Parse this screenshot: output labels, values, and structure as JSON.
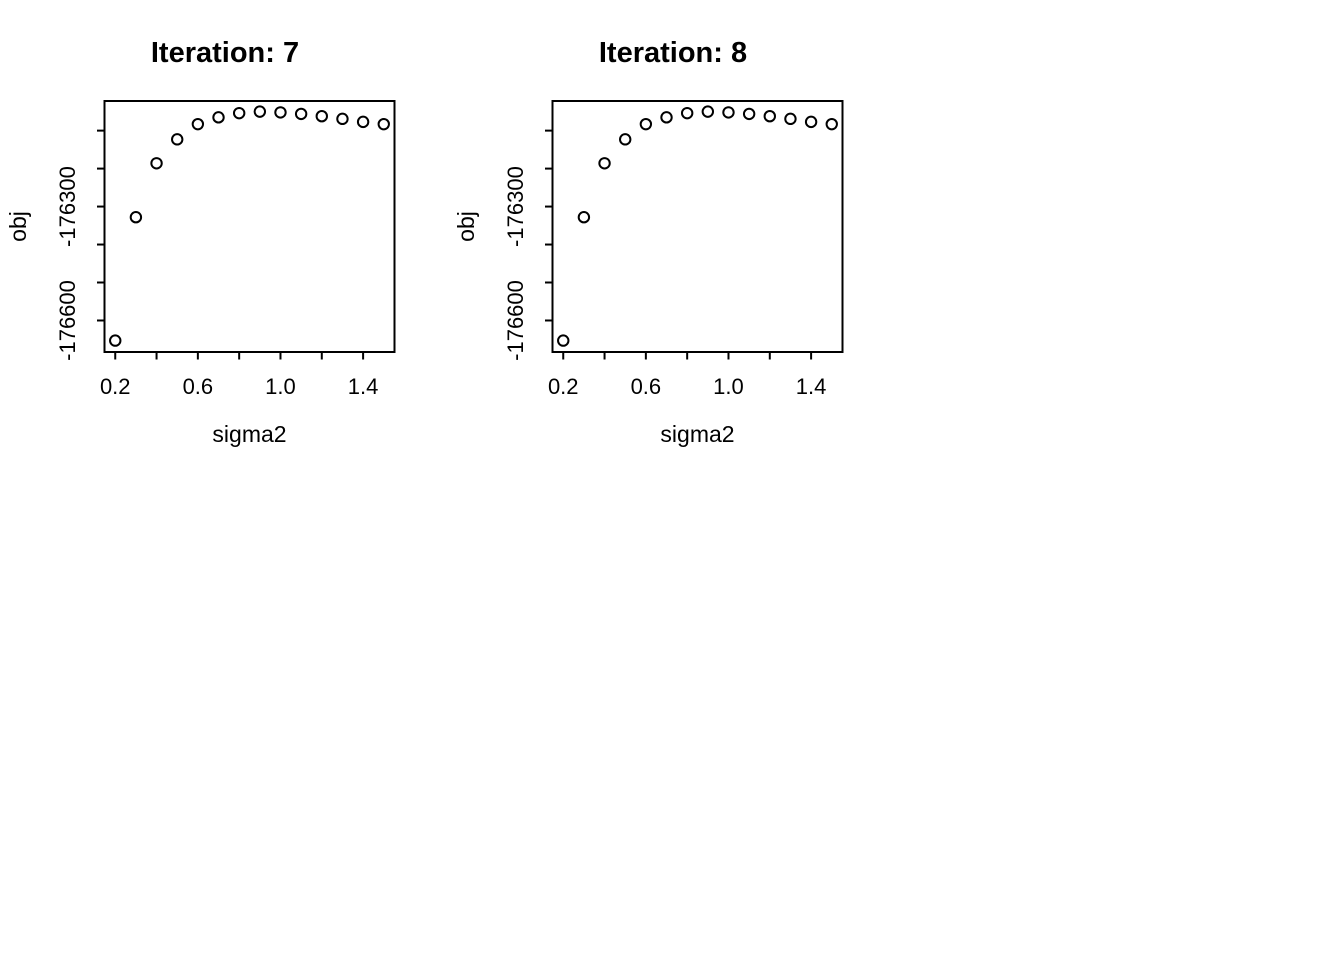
{
  "page": {
    "background_color": "#ffffff",
    "foreground_color": "#000000"
  },
  "chart_data": [
    {
      "type": "scatter",
      "title": "Iteration: 7",
      "xlabel": "sigma2",
      "ylabel": "obj",
      "marker": "open-circle",
      "color": "#000000",
      "grid": false,
      "xlim": [
        0.148,
        1.552
      ],
      "ylim": [
        -176683,
        -176022
      ],
      "x": [
        0.2,
        0.3,
        0.4,
        0.5,
        0.6,
        0.7,
        0.8,
        0.9,
        1.0,
        1.1,
        1.2,
        1.3,
        1.4,
        1.5
      ],
      "y": [
        -176653,
        -176328,
        -176186,
        -176123,
        -176083,
        -176065,
        -176054,
        -176050,
        -176052,
        -176056,
        -176062,
        -176069,
        -176077,
        -176083
      ],
      "xticks": [
        {
          "v": 0.2,
          "label": "0.2"
        },
        {
          "v": 0.4,
          "label": ""
        },
        {
          "v": 0.6,
          "label": "0.6"
        },
        {
          "v": 0.8,
          "label": ""
        },
        {
          "v": 1.0,
          "label": "1.0"
        },
        {
          "v": 1.2,
          "label": ""
        },
        {
          "v": 1.4,
          "label": "1.4"
        }
      ],
      "yticks": [
        {
          "v": -176100,
          "label": ""
        },
        {
          "v": -176200,
          "label": ""
        },
        {
          "v": -176300,
          "label": "-176300"
        },
        {
          "v": -176400,
          "label": ""
        },
        {
          "v": -176500,
          "label": ""
        },
        {
          "v": -176600,
          "label": "-176600"
        }
      ]
    },
    {
      "type": "scatter",
      "title": "Iteration: 8",
      "xlabel": "sigma2",
      "ylabel": "obj",
      "marker": "open-circle",
      "color": "#000000",
      "grid": false,
      "xlim": [
        0.148,
        1.552
      ],
      "ylim": [
        -176683,
        -176022
      ],
      "x": [
        0.2,
        0.3,
        0.4,
        0.5,
        0.6,
        0.7,
        0.8,
        0.9,
        1.0,
        1.1,
        1.2,
        1.3,
        1.4,
        1.5
      ],
      "y": [
        -176653,
        -176328,
        -176186,
        -176123,
        -176083,
        -176065,
        -176054,
        -176050,
        -176052,
        -176056,
        -176062,
        -176069,
        -176077,
        -176083
      ],
      "xticks": [
        {
          "v": 0.2,
          "label": "0.2"
        },
        {
          "v": 0.4,
          "label": ""
        },
        {
          "v": 0.6,
          "label": "0.6"
        },
        {
          "v": 0.8,
          "label": ""
        },
        {
          "v": 1.0,
          "label": "1.0"
        },
        {
          "v": 1.2,
          "label": ""
        },
        {
          "v": 1.4,
          "label": "1.4"
        }
      ],
      "yticks": [
        {
          "v": -176100,
          "label": ""
        },
        {
          "v": -176200,
          "label": ""
        },
        {
          "v": -176300,
          "label": "-176300"
        },
        {
          "v": -176400,
          "label": ""
        },
        {
          "v": -176500,
          "label": ""
        },
        {
          "v": -176600,
          "label": "-176600"
        }
      ]
    }
  ]
}
